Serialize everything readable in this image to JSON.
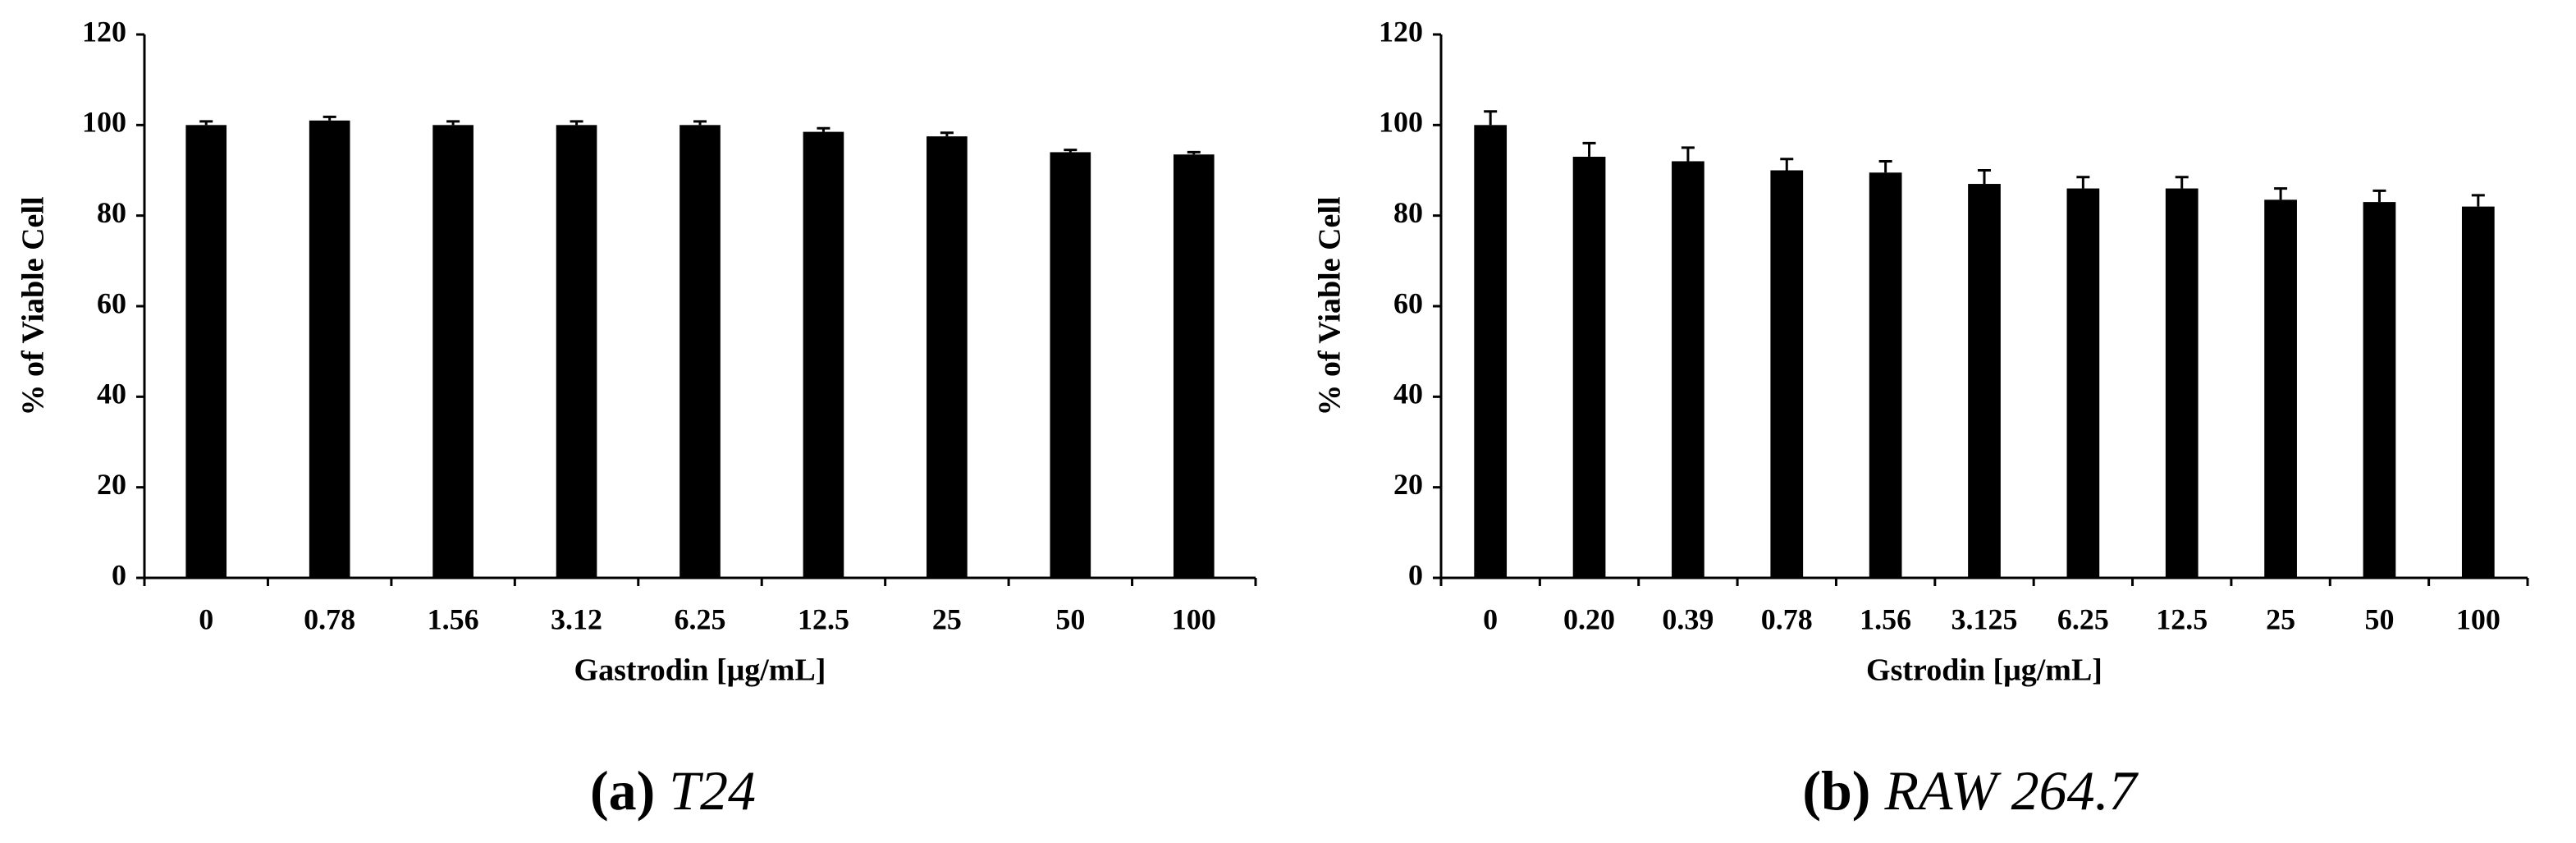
{
  "chart_data": [
    {
      "type": "bar",
      "caption_label": "(a)",
      "caption": "T24",
      "xlabel": "Gastrodin [μg/mL]",
      "ylabel": "% of Viable Cell",
      "categories": [
        "0",
        "0.78",
        "1.56",
        "3.12",
        "6.25",
        "12.5",
        "25",
        "50",
        "100"
      ],
      "values": [
        100,
        101,
        100,
        100,
        100,
        98.5,
        97.5,
        94,
        93.5
      ],
      "errors": [
        0.8,
        0.8,
        0.8,
        0.8,
        0.8,
        0.8,
        0.8,
        0.5,
        0.5
      ],
      "color": "#000000",
      "ylim": [
        0,
        120
      ],
      "yticks": [
        0,
        20,
        40,
        60,
        80,
        100,
        120
      ]
    },
    {
      "type": "bar",
      "caption_label": "(b)",
      "caption": "RAW 264.7",
      "xlabel": "Gstrodin [μg/mL]",
      "ylabel": "% of Viable Cell",
      "categories": [
        "0",
        "0.20",
        "0.39",
        "0.78",
        "1.56",
        "3.125",
        "6.25",
        "12.5",
        "25",
        "50",
        "100"
      ],
      "values": [
        100,
        93,
        92,
        90,
        89.5,
        87,
        86,
        86,
        83.5,
        83,
        82
      ],
      "errors": [
        3,
        3,
        3,
        2.5,
        2.5,
        3,
        2.5,
        2.5,
        2.5,
        2.5,
        2.5
      ],
      "color": "#000000",
      "ylim": [
        0,
        120
      ],
      "yticks": [
        0,
        20,
        40,
        60,
        80,
        100,
        120
      ]
    }
  ]
}
